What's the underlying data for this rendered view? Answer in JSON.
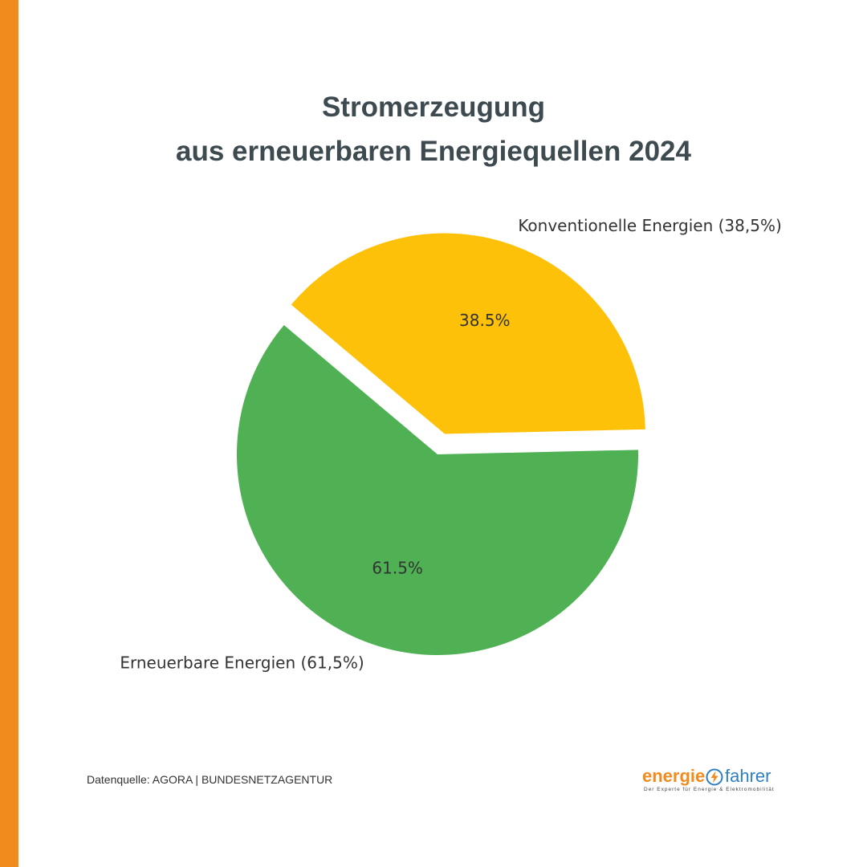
{
  "theme": {
    "accent_bar_color": "#f28b1e",
    "title_color": "#3d4a4f"
  },
  "title": {
    "line1": "Stromerzeugung",
    "line2": "aus erneuerbaren Energiequellen 2024"
  },
  "chart_data": {
    "type": "pie",
    "title": "Stromerzeugung aus erneuerbaren Energiequellen 2024",
    "slices": [
      {
        "label": "Konventionelle Energien (38,5%)",
        "value": 38.5,
        "pct_label": "38.5%",
        "color": "#fec10a",
        "exploded": true
      },
      {
        "label": "Erneuerbare Energien (61,5%)",
        "value": 61.5,
        "pct_label": "61.5%",
        "color": "#4fb153",
        "exploded": false
      }
    ]
  },
  "footer": {
    "source": "Datenquelle: AGORA | BUNDESNETZAGENTUR"
  },
  "logo": {
    "word_left": "energie",
    "word_right": "fahrer",
    "tagline": "Der Experte für Energie & Elektromobilität",
    "icon": "lightning-bolt-icon",
    "color_left": "#f28b1e",
    "color_right": "#2f7fc1"
  }
}
